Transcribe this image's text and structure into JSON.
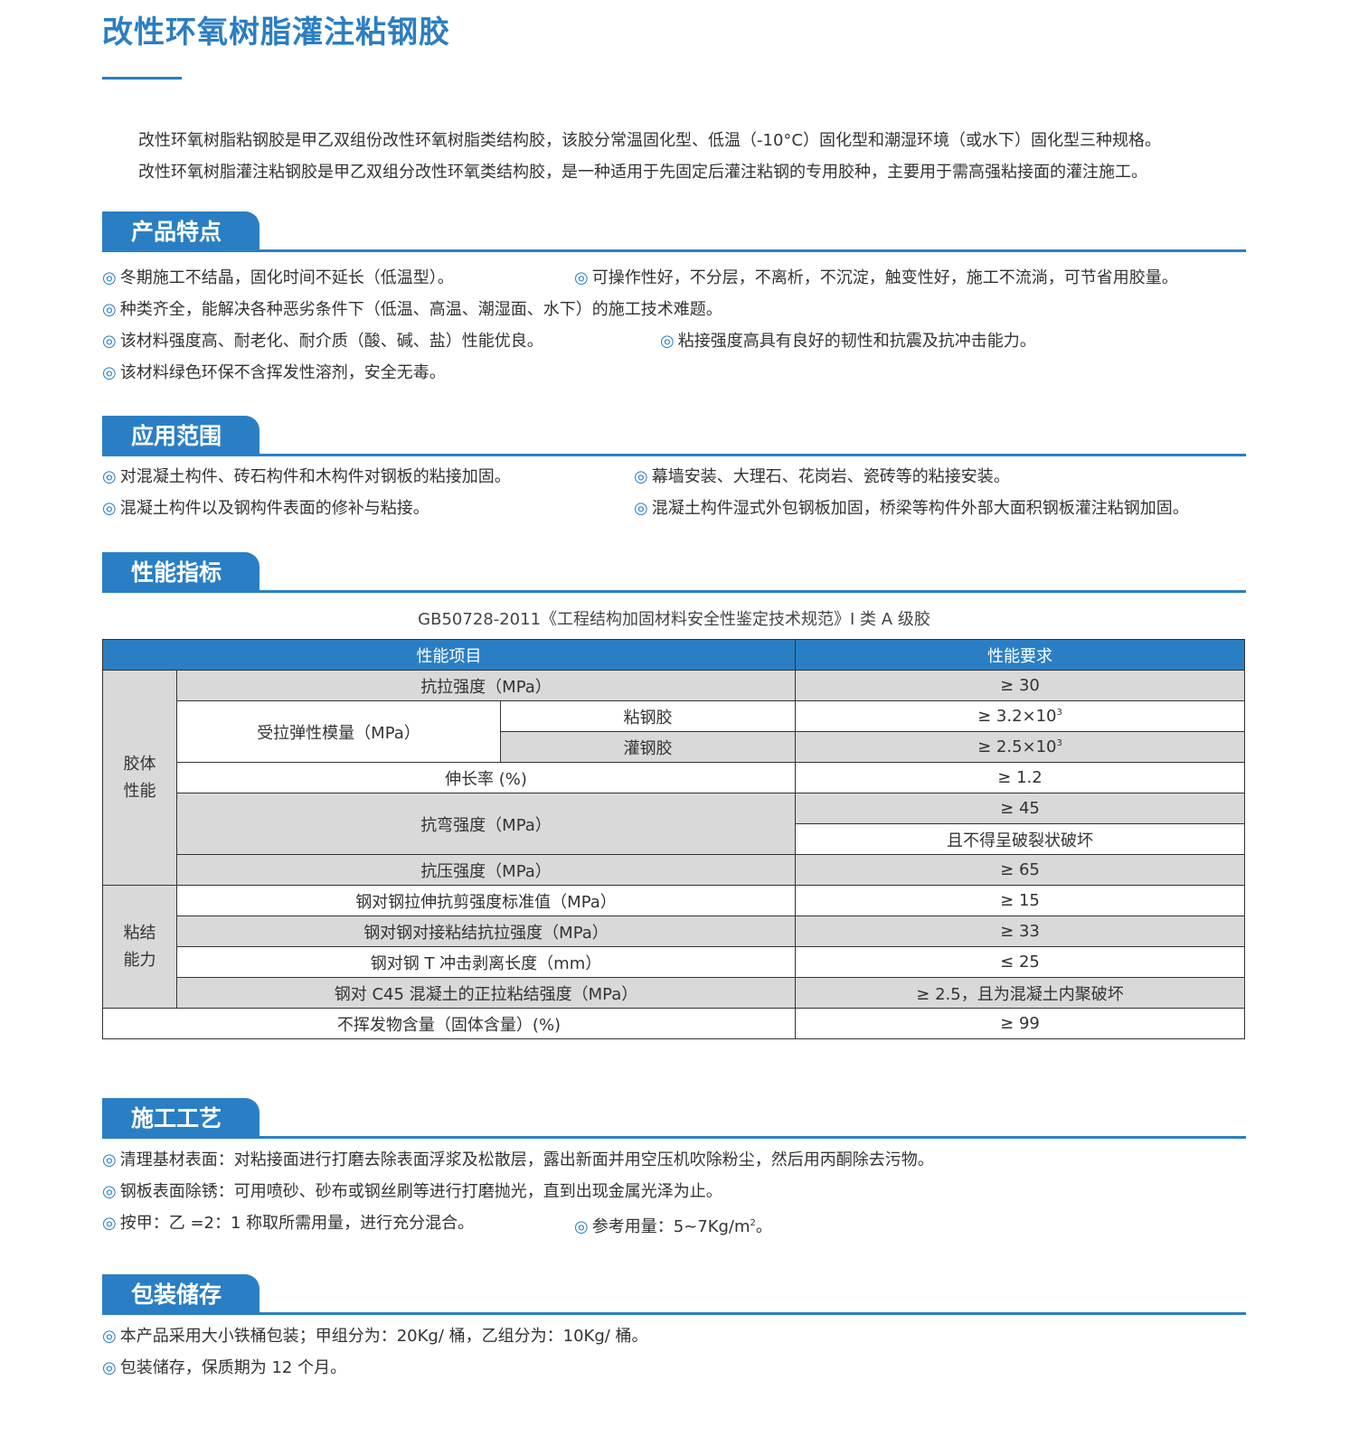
{
  "title": "改性环氧树脂灌注粘钢胶",
  "intro": [
    "改性环氧树脂粘钢胶是甲乙双组份改性环氧树脂类结构胶，该胶分常温固化型、低温（-10°C）固化型和潮湿环境（或水下）固化型三种规格。",
    "改性环氧树脂灌注粘钢胶是甲乙双组分改性环氧类结构胶，是一种适用于先固定后灌注粘钢的专用胶种，主要用于需高强粘接面的灌注施工。"
  ],
  "marker": "◎",
  "sections": {
    "features": {
      "title": "产品特点",
      "items": [
        "冬期施工不结晶，固化时间不延长（低温型）。",
        "可操作性好，不分层，不离析，不沉淀，触变性好，施工不流淌，可节省用胶量。",
        "种类齐全，能解决各种恶劣条件下（低温、高温、潮湿面、水下）的施工技术难题。",
        "该材料强度高、耐老化、耐介质（酸、碱、盐）性能优良。",
        "粘接强度高具有良好的韧性和抗震及抗冲击能力。",
        "该材料绿色环保不含挥发性溶剂，安全无毒。"
      ]
    },
    "application": {
      "title": "应用范围",
      "items": [
        "对混凝土构件、砖石构件和木构件对钢板的粘接加固。",
        "幕墙安装、大理石、花岗岩、瓷砖等的粘接安装。",
        "混凝土构件以及钢构件表面的修补与粘接。",
        "混凝土构件湿式外包钢板加固，桥梁等构件外部大面积钢板灌注粘钢加固。"
      ]
    },
    "performance": {
      "title": "性能指标",
      "standard": "GB50728-2011《工程结构加固材料安全性鉴定技术规范》I 类 A 级胶",
      "table": {
        "headers": [
          "性能项目",
          "性能要求"
        ],
        "group1": "胶体\n性能",
        "group2": "粘结\n能力",
        "r1": [
          "抗拉强度（MPa）",
          "≥ 30"
        ],
        "r2": [
          "受拉弹性模量（MPa）",
          "粘钢胶",
          "≥ 3.2×10",
          "3"
        ],
        "r3": [
          "灌钢胶",
          "≥ 2.5×10",
          "3"
        ],
        "r4": [
          "伸长率 (%)",
          "≥ 1.2"
        ],
        "r5": [
          "抗弯强度（MPa）",
          "≥ 45",
          "且不得呈破裂状破坏"
        ],
        "r6": [
          "抗压强度（MPa）",
          "≥ 65"
        ],
        "r7": [
          "钢对钢拉伸抗剪强度标准值（MPa）",
          "≥ 15"
        ],
        "r8": [
          "钢对钢对接粘结抗拉强度（MPa）",
          "≥ 33"
        ],
        "r9": [
          "钢对钢 T 冲击剥离长度（mm）",
          "≤ 25"
        ],
        "r10": [
          "钢对 C45 混凝土的正拉粘结强度（MPa）",
          "≥ 2.5，且为混凝土内聚破坏"
        ],
        "r11": [
          "不挥发物含量（固体含量）(%)",
          "≥ 99"
        ]
      }
    },
    "process": {
      "title": "施工工艺",
      "items": [
        "清理基材表面：对粘接面进行打磨去除表面浮浆及松散层，露出新面并用空压机吹除粉尘，然后用丙酮除去污物。",
        "钢板表面除锈：可用喷砂、砂布或钢丝刷等进行打磨抛光，直到出现金属光泽为止。",
        "按甲：乙 =2：1 称取所需用量，进行充分混合。",
        "参考用量：5~7Kg/m",
        "2",
        "。"
      ]
    },
    "storage": {
      "title": "包装储存",
      "items": [
        "本产品采用大小铁桶包装；甲组分为：20Kg/ 桶，乙组分为：10Kg/ 桶。",
        "包装储存，保质期为 12 个月。"
      ]
    }
  },
  "colors": {
    "accent": "#2a7fc4",
    "row_shade": "#d9d9d9"
  }
}
